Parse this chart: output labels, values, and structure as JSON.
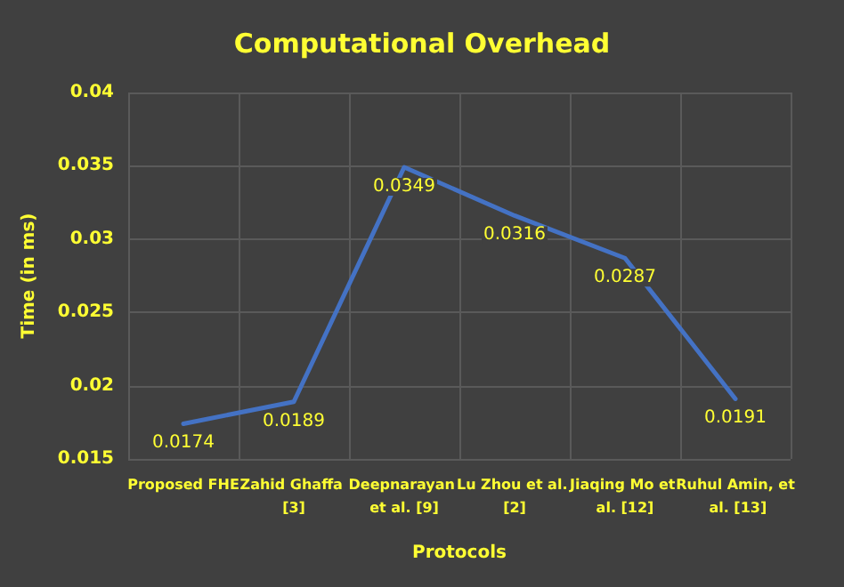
{
  "chart_data": {
    "type": "line",
    "title": "Computational Overhead",
    "xlabel": "Protocols",
    "ylabel": "Time (in ms)",
    "categories": [
      "Proposed FHE",
      "Zahid Ghaffa [3]",
      "Deepnarayan et al. [9]",
      "Lu Zhou et al. [2]",
      "Jiaqing Mo et al. [12]",
      "Ruhul Amin, et al. [13]"
    ],
    "series": [
      {
        "color": "#4472c4",
        "values": [
          0.0174,
          0.0189,
          0.0349,
          0.0316,
          0.0287,
          0.0191
        ]
      }
    ],
    "ylim": [
      0.015,
      0.04
    ],
    "yticks": [
      0.015,
      0.02,
      0.025,
      0.03,
      0.035,
      0.04
    ],
    "grid": true,
    "data_labels": true,
    "marker": "none",
    "line_style": "solid"
  }
}
